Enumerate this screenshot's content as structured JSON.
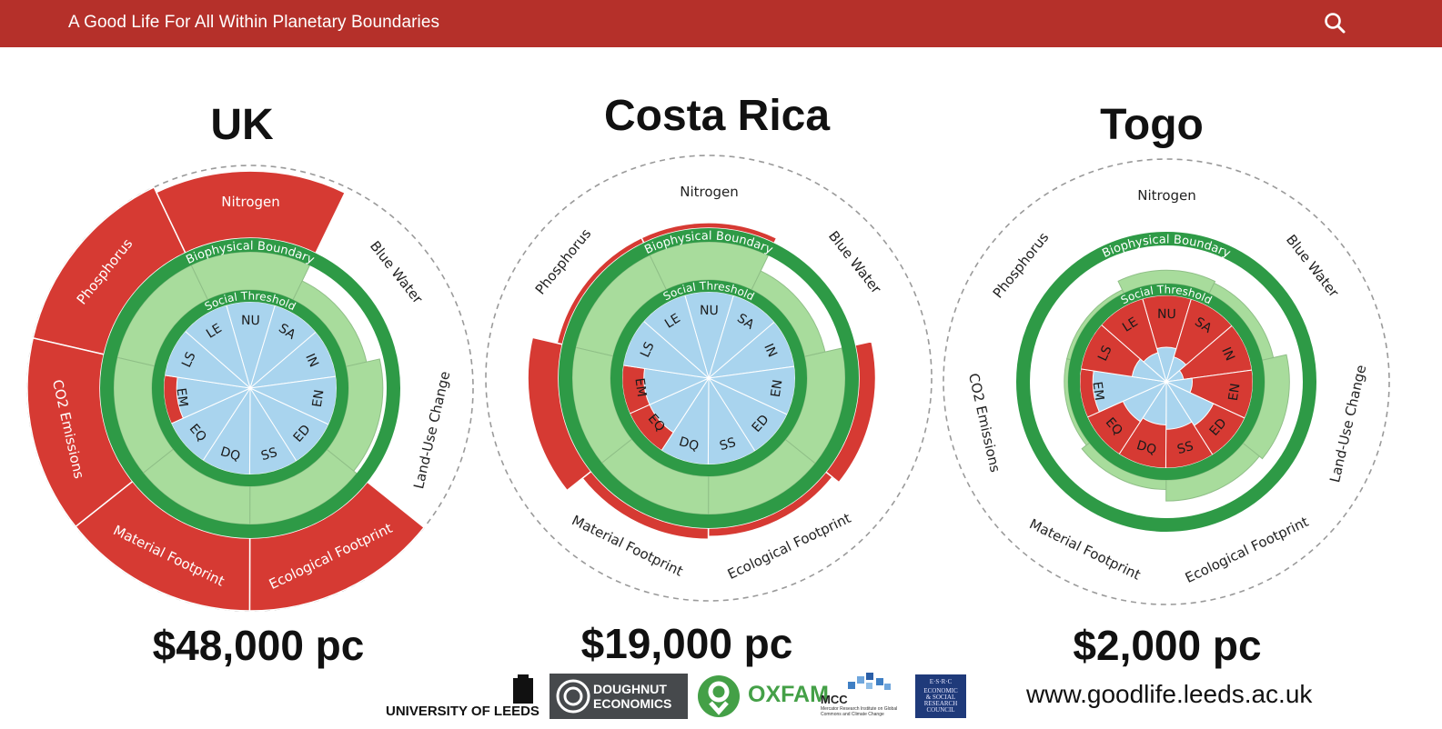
{
  "header": {
    "title": "A Good Life For All Within Planetary Boundaries",
    "search_icon": "search-icon"
  },
  "labels": {
    "biophysical": "Biophysical Boundary",
    "social": "Social Threshold",
    "social_codes": [
      "NU",
      "SA",
      "IN",
      "EN",
      "ED",
      "SS",
      "DQ",
      "EQ",
      "EM",
      "LS",
      "LE"
    ],
    "boundaries": [
      "Phosphorus",
      "Nitrogen",
      "Blue Water",
      "Land-Use Change",
      "Ecological Footprint",
      "Material Footprint",
      "CO2 Emissions"
    ]
  },
  "colors": {
    "header": "#b5302a",
    "overshoot": "#d63a33",
    "boundary_ring": "#2e9a46",
    "safe_fill": "#a8dc9c",
    "social_ok": "#a9d4ee",
    "social_short": "#d63a33"
  },
  "countries": [
    {
      "name": "UK",
      "gdp": "$48,000 pc",
      "biophysical": {
        "Phosphorus": 2.3,
        "Nitrogen": 2.2,
        "Blue Water": 0.55,
        "Land-Use Change": 0.9,
        "Ecological Footprint": 2.3,
        "Material Footprint": 2.3,
        "CO2 Emissions": 2.3
      },
      "social": {
        "NU": 1,
        "SA": 1,
        "IN": 1,
        "EN": 1,
        "ED": 1,
        "SS": 1,
        "DQ": 1,
        "EQ": 1,
        "EM": 0.85,
        "LS": 1,
        "LE": 1
      }
    },
    {
      "name": "Costa Rica",
      "gdp": "$19,000 pc",
      "biophysical": {
        "Phosphorus": 1.1,
        "Nitrogen": 1.1,
        "Blue Water": 0.55,
        "Land-Use Change": 1.3,
        "Ecological Footprint": 1.15,
        "Material Footprint": 1.2,
        "CO2 Emissions": 1.55
      },
      "social": {
        "NU": 1,
        "SA": 1,
        "IN": 1,
        "EN": 1,
        "ED": 1,
        "SS": 1,
        "DQ": 1,
        "EQ": 0.75,
        "EM": 0.75,
        "LS": 1,
        "LE": 1
      }
    },
    {
      "name": "Togo",
      "gdp": "$2,000 pc",
      "biophysical": {
        "Phosphorus": 0.1,
        "Nitrogen": 0.35,
        "Blue Water": 0.3,
        "Land-Use Change": 0.65,
        "Ecological Footprint": 0.55,
        "Material Footprint": 0.25,
        "CO2 Emissions": 0.1
      },
      "social": {
        "NU": 0.4,
        "SA": 0.3,
        "IN": 0.2,
        "EN": 0.3,
        "ED": 0.6,
        "SS": 0.55,
        "DQ": 0.5,
        "EQ": 0.55,
        "EM": 0.85,
        "LS": 0.4,
        "LE": 0.35
      }
    }
  ],
  "footer": {
    "university": "UNIVERSITY OF LEEDS",
    "doughnut_line1": "DOUGHNUT",
    "doughnut_line2": "ECONOMICS",
    "oxfam": "OXFAM",
    "mcc": "MCC",
    "mcc_sub": "Mercator Research Institute on Global Commons and Climate Change",
    "esrc_lines": [
      "E·S·R·C",
      "ECONOMIC",
      "& SOCIAL",
      "RESEARCH",
      "COUNCIL"
    ],
    "url": "www.goodlife.leeds.ac.uk"
  }
}
